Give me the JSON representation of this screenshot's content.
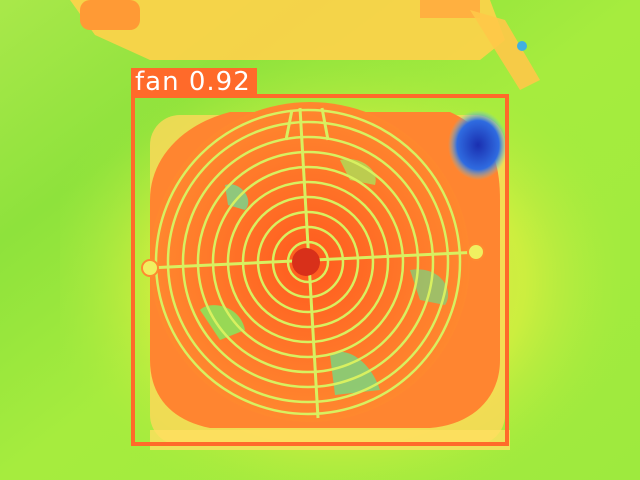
{
  "detection": {
    "label": "fan",
    "confidence": "0.92",
    "box_color": "#ff6a2a"
  },
  "palette": {
    "background_hot": "#ffb347",
    "background_cool": "#7ee84a",
    "fan_body": "#ff7a2a",
    "grille": "#e0ff60",
    "cold_spot": "#2050d0"
  }
}
